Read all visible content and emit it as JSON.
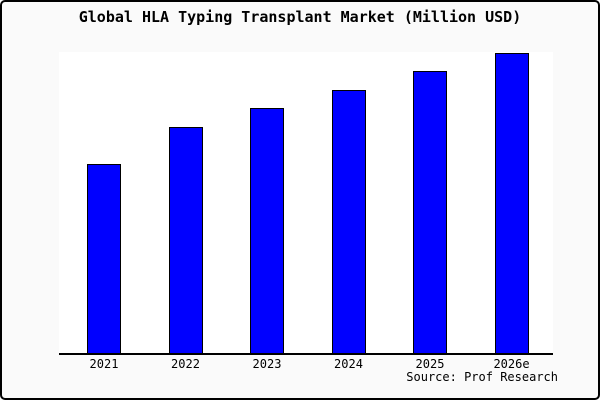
{
  "frame": {
    "background_color": "#fafafa",
    "border_color": "#000000",
    "plot_background_color": "#ffffff"
  },
  "chart_data": {
    "type": "bar",
    "title": "Global HLA Typing Transplant Market (Million USD)",
    "categories": [
      "2021",
      "2022",
      "2023",
      "2024",
      "2025",
      "2026e"
    ],
    "values": [
      63,
      75.3,
      81.7,
      87.7,
      94,
      100
    ],
    "values_note": "no y-axis scale shown; values are estimated relative heights as % of tallest bar (2026e = 100)",
    "xlabel": "",
    "ylabel": "",
    "ylim": [
      0,
      100
    ],
    "grid": false,
    "legend": false,
    "bar_color": "#0000ff",
    "bar_edge_color": "#000000",
    "source": "Source: Prof Research"
  }
}
